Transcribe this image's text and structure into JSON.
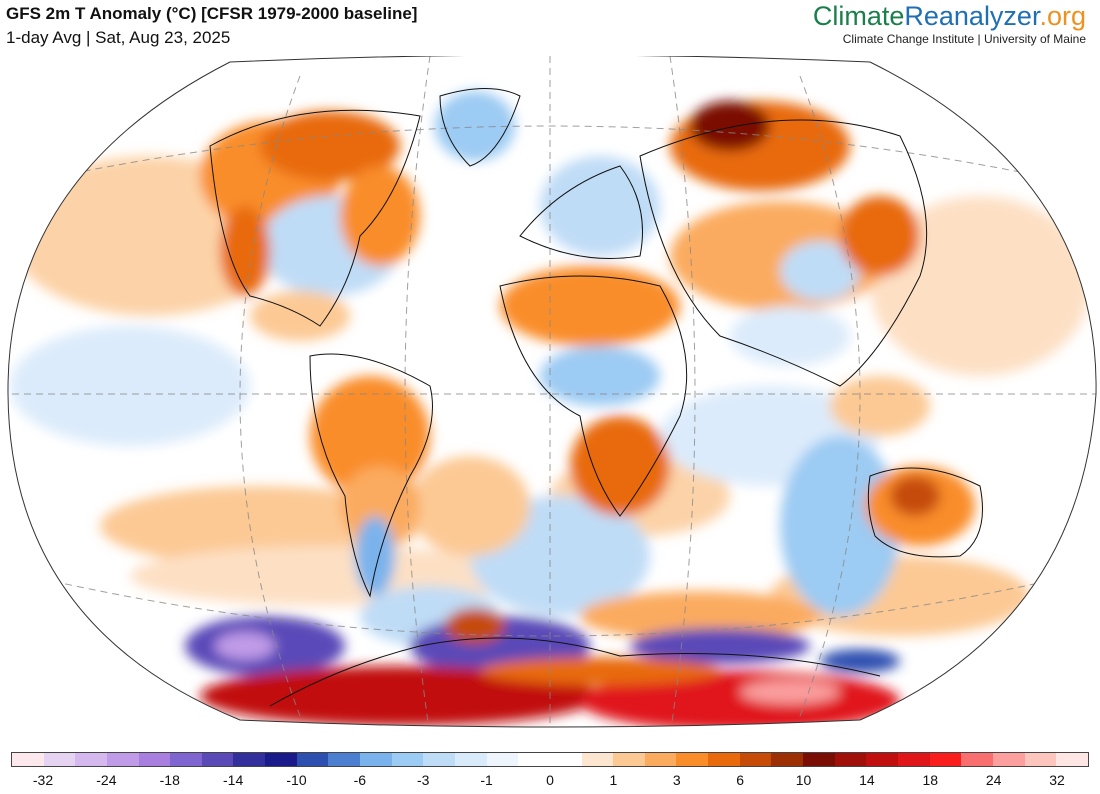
{
  "header": {
    "title": "GFS 2m T Anomaly (°C) [CFSR 1979-2000 baseline]",
    "subtitle": "1-day Avg | Sat, Aug 23, 2025"
  },
  "brand": {
    "logo_part1": "Climate",
    "logo_part2": "Reanalyzer",
    "logo_part3": ".org",
    "tagline": "Climate Change Institute | University of Maine",
    "colors": {
      "climate": "#1a7f4b",
      "reanalyzer": "#1f6fb5",
      "org": "#f0901e"
    }
  },
  "colorbar": {
    "colors": [
      "#fde8ee",
      "#e6d3f2",
      "#d4b8ee",
      "#c09be8",
      "#a87fdf",
      "#7f65cf",
      "#5a4ab8",
      "#33309e",
      "#1a1a8a",
      "#2d4fb0",
      "#4d7fd1",
      "#7ab3ec",
      "#9ccbf3",
      "#bfdcf6",
      "#d9eafa",
      "#eef5fd",
      "#ffffff",
      "#ffffff",
      "#fde6cf",
      "#fcc994",
      "#fbab5e",
      "#f98d2a",
      "#e86a0d",
      "#c54b07",
      "#9c2f04",
      "#7a0d04",
      "#a10f0b",
      "#c10f10",
      "#e0151a",
      "#fa1d1d",
      "#f96f70",
      "#fb9f9f",
      "#fcc6bf",
      "#fde6e4"
    ],
    "ticks": [
      "-32",
      "-24",
      "-18",
      "-14",
      "-10",
      "-6",
      "-3",
      "-1",
      "0",
      "1",
      "3",
      "6",
      "10",
      "14",
      "18",
      "24",
      "32"
    ]
  },
  "map": {
    "projection": "Winkel Tripel (world)",
    "regions": [
      {
        "name": "antarctica-coast",
        "anomaly": 18
      },
      {
        "name": "antarctic-interior-cold",
        "anomaly": -14
      },
      {
        "name": "siberia-warm",
        "anomaly": 10
      },
      {
        "name": "australia-warm",
        "anomaly": 6
      },
      {
        "name": "north-africa-warm",
        "anomaly": 3
      },
      {
        "name": "southern-ocean-cold",
        "anomaly": -3
      }
    ]
  }
}
